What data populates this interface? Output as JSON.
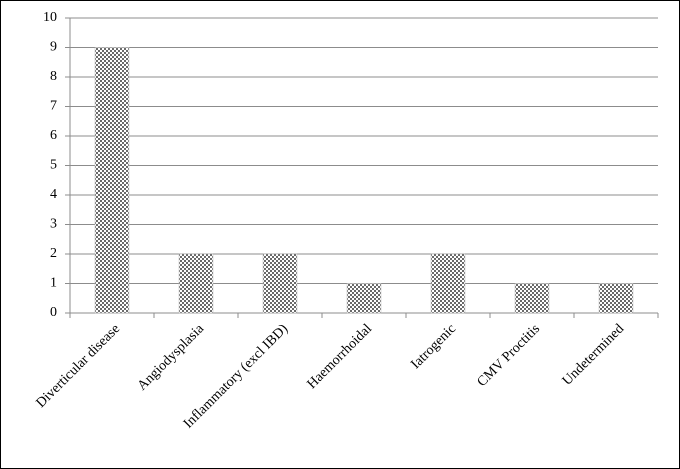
{
  "chart_data": {
    "type": "bar",
    "categories": [
      "Diverticular disease",
      "Angiodysplasia",
      "Inflammatory (excl IBD)",
      "Haemorrhoidal",
      "Iatrogenic",
      "CMV Proctitis",
      "Undetermined"
    ],
    "values": [
      9,
      2,
      2,
      1,
      2,
      1,
      1
    ],
    "ylim": [
      0,
      10
    ],
    "yticks": [
      0,
      1,
      2,
      3,
      4,
      5,
      6,
      7,
      8,
      9,
      10
    ],
    "grid": true
  }
}
